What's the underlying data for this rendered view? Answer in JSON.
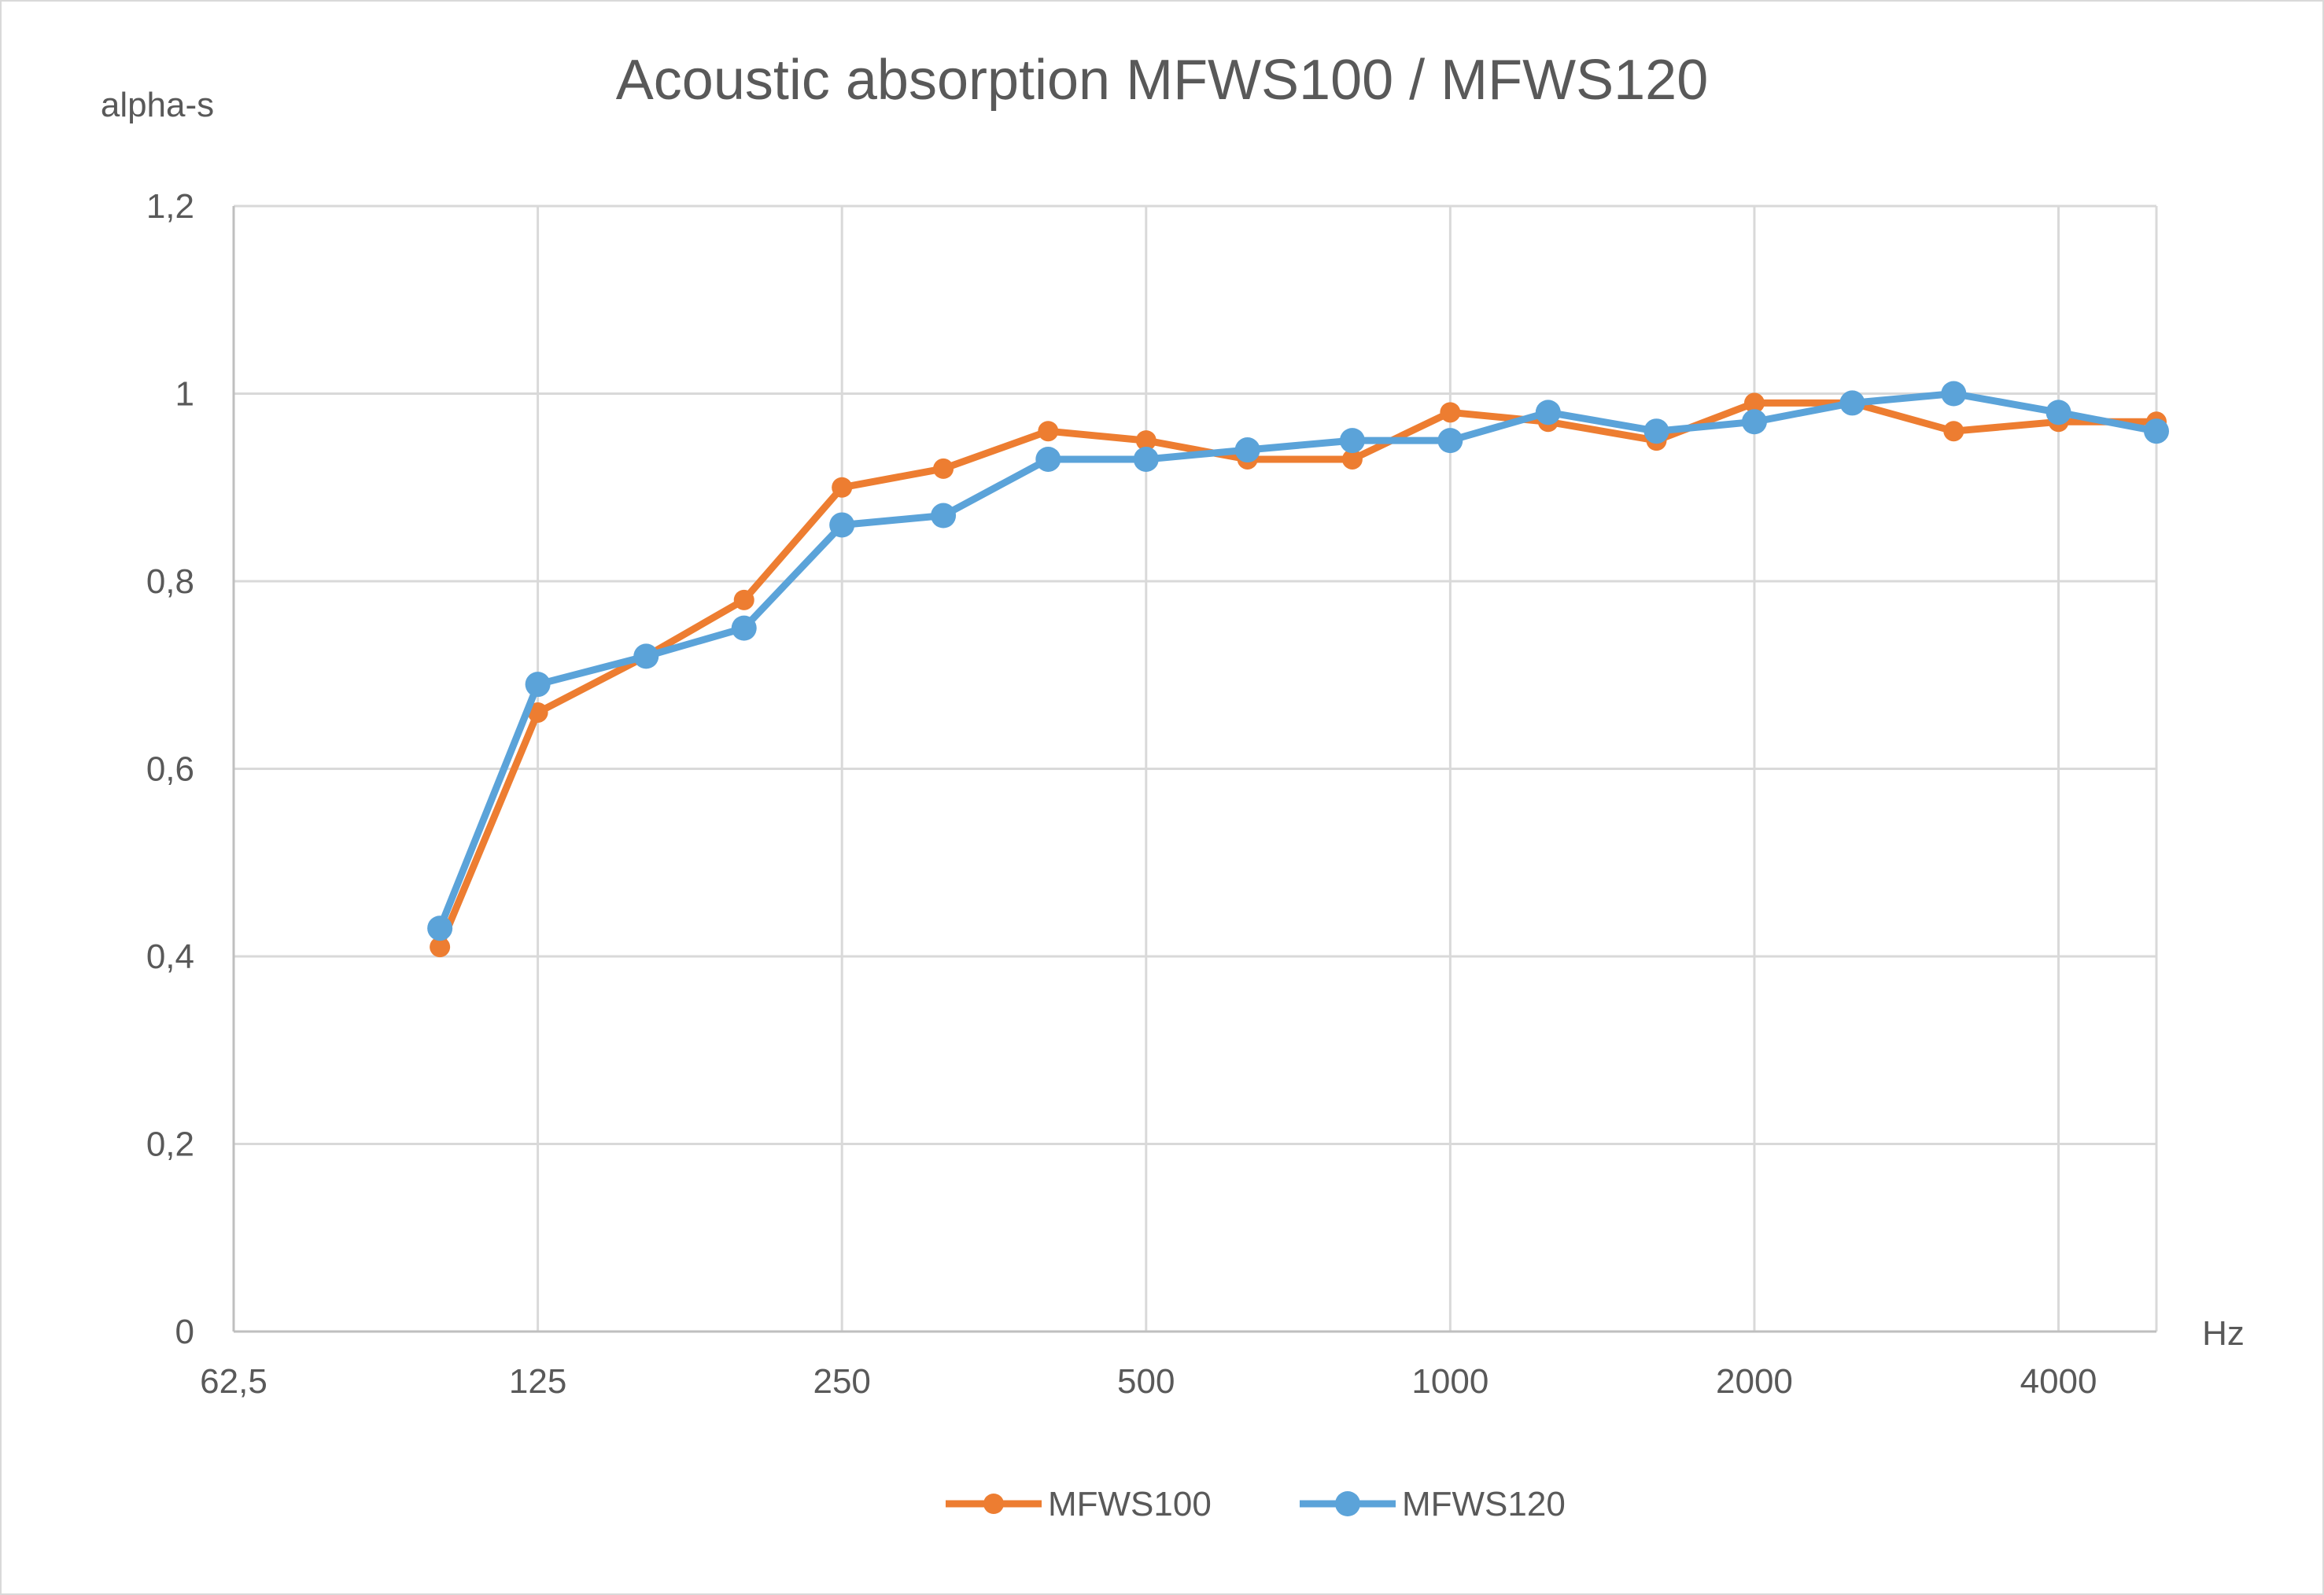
{
  "chart_data": {
    "type": "line",
    "title": "Acoustic absorption MFWS100 / MFWS120",
    "xlabel": "Hz",
    "ylabel": "alpha-s",
    "x_scale": "log2",
    "x_ticks": [
      "62,5",
      "125",
      "250",
      "500",
      "1000",
      "2000",
      "4000"
    ],
    "x_tick_values": [
      62.5,
      125,
      250,
      500,
      1000,
      2000,
      4000
    ],
    "xlim": [
      62.5,
      5000
    ],
    "y_ticks": [
      "0",
      "0,2",
      "0,4",
      "0,6",
      "0,8",
      "1",
      "1,2"
    ],
    "y_tick_values": [
      0,
      0.2,
      0.4,
      0.6,
      0.8,
      1.0,
      1.2
    ],
    "ylim": [
      0,
      1.2
    ],
    "grid": true,
    "legend_position": "bottom",
    "x": [
      100,
      125,
      160,
      200,
      250,
      315,
      400,
      500,
      630,
      800,
      1000,
      1250,
      1600,
      2000,
      2500,
      3150,
      4000,
      5000
    ],
    "series": [
      {
        "name": "MFWS100",
        "color": "#ED7D31",
        "values": [
          0.41,
          0.66,
          0.72,
          0.78,
          0.9,
          0.92,
          0.96,
          0.95,
          0.93,
          0.93,
          0.98,
          0.97,
          0.95,
          0.99,
          0.99,
          0.96,
          0.97,
          0.97
        ]
      },
      {
        "name": "MFWS120",
        "color": "#5BA3D9",
        "values": [
          0.43,
          0.69,
          0.72,
          0.75,
          0.86,
          0.87,
          0.93,
          0.93,
          0.94,
          0.95,
          0.95,
          0.98,
          0.96,
          0.97,
          0.99,
          1.0,
          0.98,
          0.96
        ]
      }
    ]
  }
}
